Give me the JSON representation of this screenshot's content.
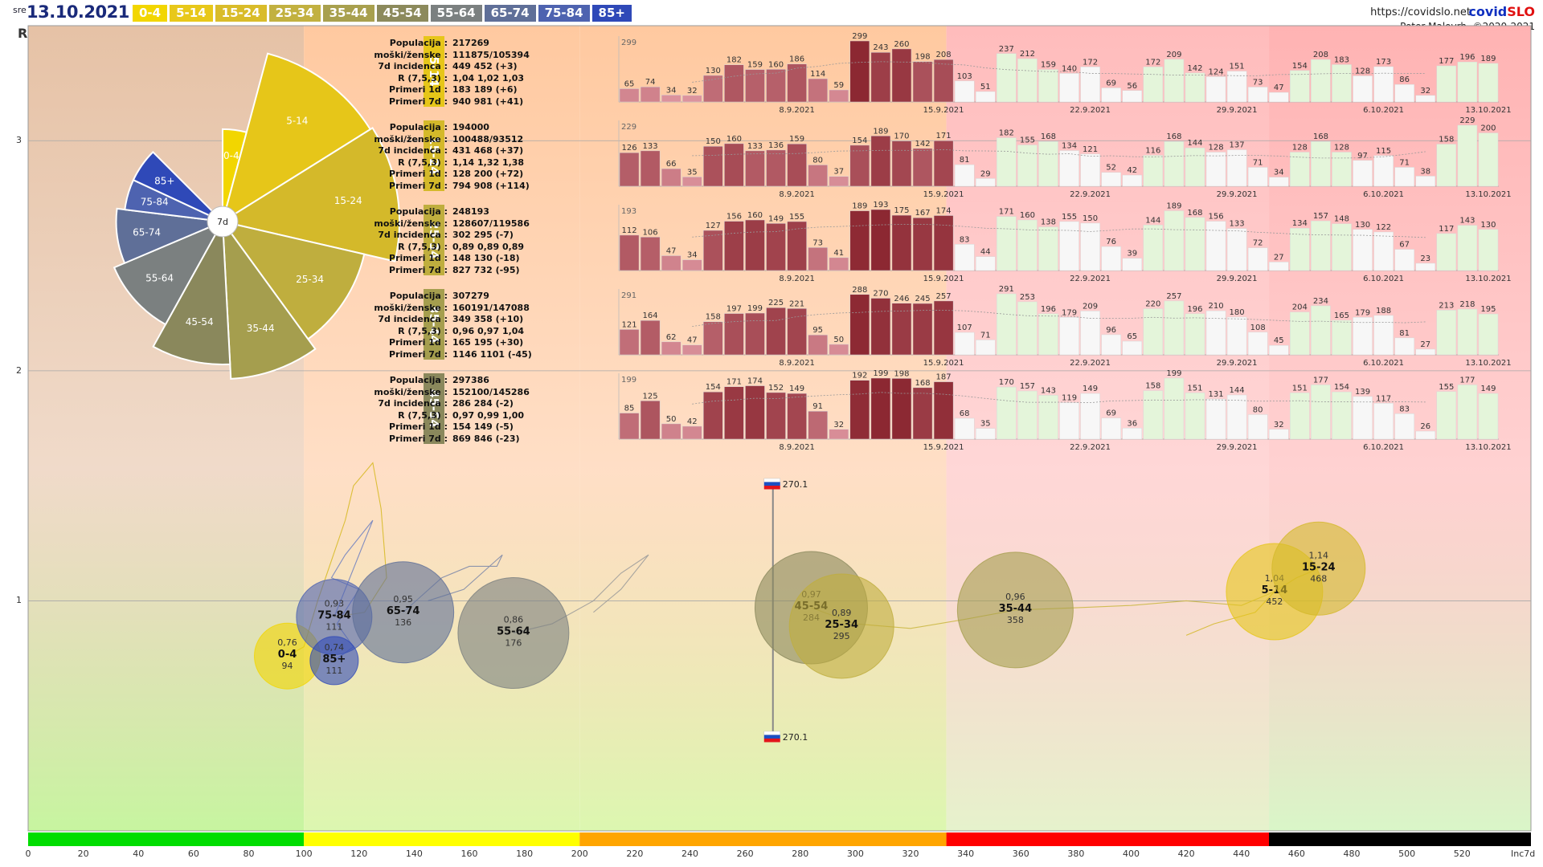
{
  "header": {
    "day": "sre",
    "date": "13.10.2021",
    "site": "https://covidslo.net",
    "brand_a": "covid",
    "brand_b": "SLO",
    "author": "Peter Malovrh, ©2020-2021",
    "r_label": "R",
    "pie_center": "7d"
  },
  "legend": [
    {
      "label": "0-4",
      "color": "#f2d600"
    },
    {
      "label": "5-14",
      "color": "#e8c81a"
    },
    {
      "label": "15-24",
      "color": "#d9bc2a"
    },
    {
      "label": "25-34",
      "color": "#c2b140"
    },
    {
      "label": "35-44",
      "color": "#a8a04e"
    },
    {
      "label": "45-54",
      "color": "#8c8a5c"
    },
    {
      "label": "55-64",
      "color": "#7b8080"
    },
    {
      "label": "65-74",
      "color": "#5f6f98"
    },
    {
      "label": "75-84",
      "color": "#4e63b0"
    },
    {
      "label": "85+",
      "color": "#2f49b8"
    }
  ],
  "axes": {
    "x_ticks": [
      "0",
      "20",
      "40",
      "60",
      "80",
      "100",
      "120",
      "140",
      "160",
      "180",
      "200",
      "220",
      "240",
      "260",
      "280",
      "300",
      "320",
      "340",
      "360",
      "380",
      "400",
      "420",
      "440",
      "460",
      "480",
      "500",
      "520"
    ],
    "x_name": "Inc7d",
    "y_ticks": [
      "1",
      "2",
      "3"
    ],
    "x_range": [
      0,
      545
    ],
    "y_range": [
      0,
      3.5
    ]
  },
  "panels": [
    {
      "group": "5-14",
      "color": "#e6c619",
      "stats": [
        [
          "Populacija",
          "217269"
        ],
        [
          "moški/ženske",
          "111875/105394"
        ],
        [
          "7d incidenca",
          "449 452 (+3)"
        ],
        [
          "R (7,5,3)",
          "1,04 1,02 1,03"
        ],
        [
          "Primeri 1d",
          "183 189 (+6)"
        ],
        [
          "Primeri 7d",
          "940 981 (+41)"
        ]
      ],
      "max": "299",
      "values": [
        65,
        74,
        34,
        32,
        130,
        182,
        159,
        160,
        186,
        114,
        59,
        299,
        243,
        260,
        198,
        208,
        103,
        51,
        237,
        212,
        159,
        140,
        172,
        69,
        56,
        172,
        209,
        142,
        124,
        151,
        73,
        47,
        154,
        208,
        183,
        128,
        173,
        86,
        32,
        177,
        196,
        189
      ]
    },
    {
      "group": "15-24",
      "color": "#d4b92a",
      "stats": [
        [
          "Populacija",
          "194000"
        ],
        [
          "moški/ženske",
          "100488/93512"
        ],
        [
          "7d incidenca",
          "431 468 (+37)"
        ],
        [
          "R (7,5,3)",
          "1,14 1,32 1,38"
        ],
        [
          "Primeri 1d",
          "128 200 (+72)"
        ],
        [
          "Primeri 7d",
          "794 908 (+114)"
        ]
      ],
      "max": "229",
      "values": [
        126,
        133,
        66,
        35,
        150,
        160,
        133,
        136,
        159,
        80,
        37,
        154,
        189,
        170,
        142,
        171,
        81,
        29,
        182,
        155,
        168,
        134,
        121,
        52,
        42,
        116,
        168,
        144,
        128,
        137,
        71,
        34,
        128,
        168,
        128,
        97,
        115,
        71,
        38,
        158,
        229,
        200
      ]
    },
    {
      "group": "25-34",
      "color": "#bfae3e",
      "stats": [
        [
          "Populacija",
          "248193"
        ],
        [
          "moški/ženske",
          "128607/119586"
        ],
        [
          "7d incidenca",
          "302 295 (-7)"
        ],
        [
          "R (7,5,3)",
          "0,89 0,89 0,89"
        ],
        [
          "Primeri 1d",
          "148 130 (-18)"
        ],
        [
          "Primeri 7d",
          "827 732 (-95)"
        ]
      ],
      "max": "193",
      "values": [
        112,
        106,
        47,
        34,
        127,
        156,
        160,
        149,
        155,
        73,
        41,
        189,
        193,
        175,
        167,
        174,
        83,
        44,
        171,
        160,
        138,
        155,
        150,
        76,
        39,
        144,
        189,
        168,
        156,
        133,
        72,
        27,
        134,
        157,
        148,
        130,
        122,
        67,
        23,
        117,
        143,
        130
      ]
    },
    {
      "group": "35-44",
      "color": "#a59e4e",
      "stats": [
        [
          "Populacija",
          "307279"
        ],
        [
          "moški/ženske",
          "160191/147088"
        ],
        [
          "7d incidenca",
          "349 358 (+10)"
        ],
        [
          "R (7,5,3)",
          "0,96 0,97 1,04"
        ],
        [
          "Primeri 1d",
          "165 195 (+30)"
        ],
        [
          "Primeri 7d",
          "1146 1101 (-45)"
        ]
      ],
      "max": "291",
      "values": [
        121,
        164,
        62,
        47,
        158,
        197,
        199,
        225,
        221,
        95,
        50,
        288,
        270,
        246,
        245,
        257,
        107,
        71,
        291,
        253,
        196,
        179,
        209,
        96,
        65,
        220,
        257,
        196,
        210,
        180,
        108,
        45,
        204,
        234,
        165,
        179,
        188,
        81,
        27,
        213,
        218,
        195
      ]
    },
    {
      "group": "45-54",
      "color": "#8a885c",
      "stats": [
        [
          "Populacija",
          "297386"
        ],
        [
          "moški/ženske",
          "152100/145286"
        ],
        [
          "7d incidenca",
          "286 284 (-2)"
        ],
        [
          "R (7,5,3)",
          "0,97 0,99 1,00"
        ],
        [
          "Primeri 1d",
          "154 149 (-5)"
        ],
        [
          "Primeri 7d",
          "869 846 (-23)"
        ]
      ],
      "max": "199",
      "values": [
        85,
        125,
        50,
        42,
        154,
        171,
        174,
        152,
        149,
        91,
        32,
        192,
        199,
        198,
        168,
        187,
        68,
        35,
        170,
        157,
        143,
        119,
        149,
        69,
        36,
        158,
        199,
        151,
        131,
        144,
        80,
        32,
        151,
        177,
        154,
        139,
        117,
        83,
        26,
        155,
        177,
        149
      ]
    }
  ],
  "panel_dates": [
    "8.9.2021",
    "15.9.2021",
    "22.9.2021",
    "29.9.2021",
    "6.10.2021",
    "13.10.2021"
  ],
  "pie": [
    {
      "label": "0-4",
      "value": 94,
      "color": "#f2d600"
    },
    {
      "label": "5-14",
      "value": 452,
      "color": "#e6c619"
    },
    {
      "label": "15-24",
      "value": 468,
      "color": "#d4b92a"
    },
    {
      "label": "25-34",
      "value": 295,
      "color": "#bfae3e"
    },
    {
      "label": "35-44",
      "value": 358,
      "color": "#a59e4e"
    },
    {
      "label": "45-54",
      "value": 284,
      "color": "#8a885c"
    },
    {
      "label": "55-64",
      "value": 176,
      "color": "#7b8080"
    },
    {
      "label": "65-74",
      "value": 136,
      "color": "#5f6f98"
    },
    {
      "label": "75-84",
      "value": 111,
      "color": "#4e63b0"
    },
    {
      "label": "85+",
      "value": 111,
      "color": "#2f49b8"
    }
  ],
  "chart_data": {
    "type": "scatter",
    "x_label": "Inc7d",
    "y_label": "R",
    "xlim": [
      0,
      545
    ],
    "ylim": [
      0,
      3.5
    ],
    "reference": {
      "x": 270.1,
      "label": "270.1"
    },
    "bubbles": [
      {
        "name": "0-4",
        "x": 94,
        "y": 0.76,
        "r_text": "0,76",
        "inc_text": "94",
        "color": "#f2d600"
      },
      {
        "name": "75-84",
        "x": 111,
        "y": 0.93,
        "r_text": "0,93",
        "inc_text": "111",
        "color": "#4e63b0"
      },
      {
        "name": "85+",
        "x": 111,
        "y": 0.74,
        "r_text": "0,74",
        "inc_text": "111",
        "color": "#2f49b8"
      },
      {
        "name": "65-74",
        "x": 136,
        "y": 0.95,
        "r_text": "0,95",
        "inc_text": "136",
        "color": "#5f6f98"
      },
      {
        "name": "55-64",
        "x": 176,
        "y": 0.86,
        "r_text": "0,86",
        "inc_text": "176",
        "color": "#7b8080"
      },
      {
        "name": "45-54",
        "x": 284,
        "y": 0.97,
        "r_text": "0,97",
        "inc_text": "284",
        "color": "#8a885c"
      },
      {
        "name": "25-34",
        "x": 295,
        "y": 0.89,
        "r_text": "0,89",
        "inc_text": "295",
        "color": "#bfae3e"
      },
      {
        "name": "35-44",
        "x": 358,
        "y": 0.96,
        "r_text": "0,96",
        "inc_text": "358",
        "color": "#a59e4e"
      },
      {
        "name": "5-14",
        "x": 452,
        "y": 1.04,
        "r_text": "1,04",
        "inc_text": "452",
        "color": "#e6c619"
      },
      {
        "name": "15-24",
        "x": 468,
        "y": 1.14,
        "r_text": "1,14",
        "inc_text": "468",
        "color": "#d4b92a"
      }
    ]
  }
}
